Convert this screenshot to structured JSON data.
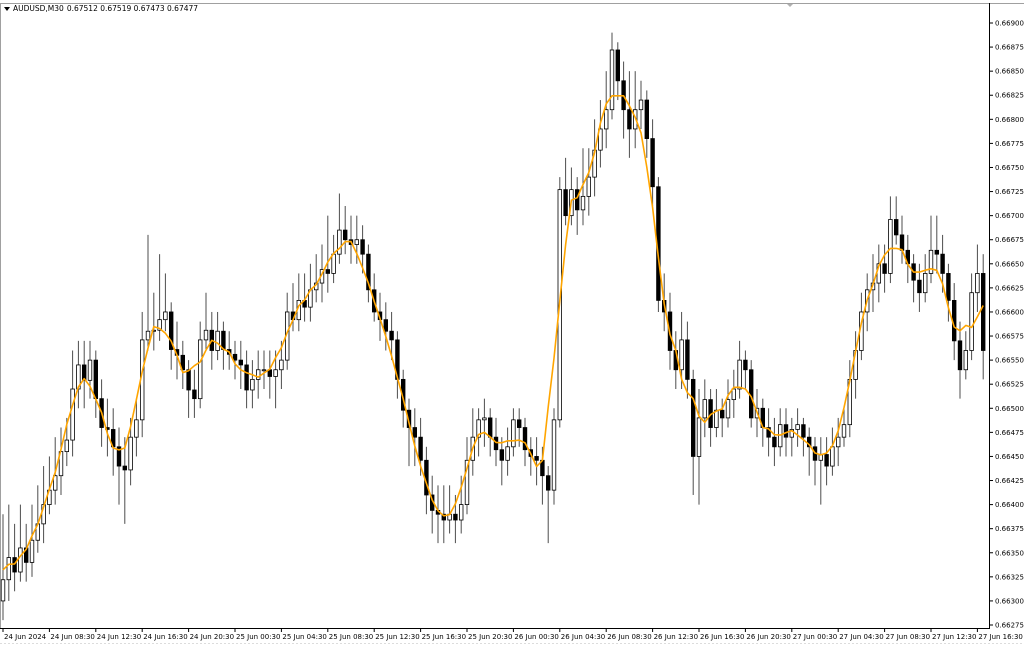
{
  "header": {
    "symbol": "AUDUSD,M30",
    "quote": "0.67512 0.67519 0.67473 0.67477",
    "menu_icon": "triangle-down-icon"
  },
  "colors": {
    "background": "#ffffff",
    "candle": "#000000",
    "wick": "#4d4d4d",
    "indicator": "#ffa500",
    "axis": "#000000"
  },
  "chart_data": {
    "type": "candlestick",
    "title": "AUDUSD,M30",
    "timeframe": "M30",
    "grid": false,
    "ylim": [
      0.66275,
      0.669
    ],
    "y_ticks": [
      "0.66900",
      "0.66875",
      "0.66850",
      "0.66825",
      "0.66800",
      "0.66775",
      "0.66750",
      "0.66725",
      "0.66700",
      "0.66675",
      "0.66650",
      "0.66625",
      "0.66600",
      "0.66575",
      "0.66550",
      "0.66525",
      "0.66500",
      "0.66475",
      "0.66450",
      "0.66425",
      "0.66400",
      "0.66375",
      "0.66350",
      "0.66325",
      "0.66300",
      "0.66275"
    ],
    "x_ticks": [
      "24 Jun 2024",
      "24 Jun 08:30",
      "24 Jun 12:30",
      "24 Jun 16:30",
      "24 Jun 20:30",
      "25 Jun 00:30",
      "25 Jun 04:30",
      "25 Jun 08:30",
      "25 Jun 12:30",
      "25 Jun 16:30",
      "25 Jun 20:30",
      "26 Jun 00:30",
      "26 Jun 04:30",
      "26 Jun 08:30",
      "26 Jun 12:30",
      "26 Jun 16:30",
      "26 Jun 20:30",
      "27 Jun 00:30",
      "27 Jun 04:30",
      "27 Jun 08:30",
      "27 Jun 12:30",
      "27 Jun 16:30"
    ],
    "indicator": {
      "type": "moving-average",
      "color": "#ffa500"
    },
    "ohlc": [
      [
        0.663,
        0.6639,
        0.6628,
        0.66322
      ],
      [
        0.66322,
        0.664,
        0.663,
        0.66345
      ],
      [
        0.66345,
        0.6638,
        0.6631,
        0.6633
      ],
      [
        0.6633,
        0.664,
        0.6632,
        0.66355
      ],
      [
        0.66355,
        0.6638,
        0.6632,
        0.6634
      ],
      [
        0.6634,
        0.664,
        0.66325,
        0.66363
      ],
      [
        0.66363,
        0.6642,
        0.6635,
        0.6638
      ],
      [
        0.6638,
        0.6644,
        0.6636,
        0.664
      ],
      [
        0.664,
        0.6645,
        0.6639,
        0.66415
      ],
      [
        0.66415,
        0.6647,
        0.664,
        0.6643
      ],
      [
        0.6643,
        0.6648,
        0.6641,
        0.66455
      ],
      [
        0.66455,
        0.6649,
        0.6644,
        0.66467
      ],
      [
        0.66467,
        0.6656,
        0.6645,
        0.6652
      ],
      [
        0.6652,
        0.6657,
        0.665,
        0.66545
      ],
      [
        0.66545,
        0.6657,
        0.665,
        0.66529
      ],
      [
        0.66529,
        0.6657,
        0.6651,
        0.6655
      ],
      [
        0.6655,
        0.6656,
        0.6649,
        0.6651
      ],
      [
        0.6651,
        0.6653,
        0.6646,
        0.6648
      ],
      [
        0.6648,
        0.6651,
        0.6645,
        0.66478
      ],
      [
        0.66478,
        0.665,
        0.6643,
        0.6646
      ],
      [
        0.6646,
        0.6648,
        0.664,
        0.6644
      ],
      [
        0.6644,
        0.6647,
        0.6638,
        0.66436
      ],
      [
        0.66436,
        0.6649,
        0.6642,
        0.6647
      ],
      [
        0.6647,
        0.6651,
        0.6645,
        0.66488
      ],
      [
        0.66488,
        0.666,
        0.6647,
        0.66571
      ],
      [
        0.66571,
        0.6668,
        0.6656,
        0.6658
      ],
      [
        0.6658,
        0.6662,
        0.6656,
        0.66581
      ],
      [
        0.66581,
        0.6666,
        0.6657,
        0.66592
      ],
      [
        0.66592,
        0.6664,
        0.6658,
        0.666
      ],
      [
        0.666,
        0.6661,
        0.6654,
        0.66561
      ],
      [
        0.66561,
        0.6659,
        0.6653,
        0.66555
      ],
      [
        0.66555,
        0.6657,
        0.6652,
        0.6654
      ],
      [
        0.6654,
        0.6655,
        0.6649,
        0.66519
      ],
      [
        0.66519,
        0.6654,
        0.6649,
        0.6651
      ],
      [
        0.6651,
        0.6659,
        0.665,
        0.66571
      ],
      [
        0.66571,
        0.6662,
        0.6656,
        0.66581
      ],
      [
        0.66581,
        0.666,
        0.6654,
        0.6656
      ],
      [
        0.6656,
        0.666,
        0.6655,
        0.6658
      ],
      [
        0.6658,
        0.6659,
        0.6654,
        0.66561
      ],
      [
        0.66561,
        0.6658,
        0.6654,
        0.66556
      ],
      [
        0.66556,
        0.6657,
        0.6653,
        0.6655
      ],
      [
        0.6655,
        0.6657,
        0.6652,
        0.66545
      ],
      [
        0.66545,
        0.6656,
        0.665,
        0.66519
      ],
      [
        0.66519,
        0.6655,
        0.665,
        0.6653
      ],
      [
        0.6653,
        0.6656,
        0.6651,
        0.6654
      ],
      [
        0.6654,
        0.6656,
        0.6652,
        0.6654
      ],
      [
        0.6654,
        0.6656,
        0.6651,
        0.66533
      ],
      [
        0.66533,
        0.6656,
        0.665,
        0.6654
      ],
      [
        0.6654,
        0.6657,
        0.6652,
        0.6655
      ],
      [
        0.6655,
        0.6662,
        0.6654,
        0.666
      ],
      [
        0.666,
        0.6663,
        0.6658,
        0.66592
      ],
      [
        0.66592,
        0.6664,
        0.6658,
        0.66612
      ],
      [
        0.66612,
        0.6664,
        0.6659,
        0.66605
      ],
      [
        0.66605,
        0.6665,
        0.6659,
        0.66623
      ],
      [
        0.66623,
        0.6666,
        0.6661,
        0.6663
      ],
      [
        0.6663,
        0.6667,
        0.6661,
        0.66644
      ],
      [
        0.66644,
        0.667,
        0.6662,
        0.6664
      ],
      [
        0.6664,
        0.6668,
        0.6663,
        0.6666
      ],
      [
        0.6666,
        0.66723,
        0.6665,
        0.66685
      ],
      [
        0.66685,
        0.6671,
        0.6666,
        0.66675
      ],
      [
        0.66675,
        0.667,
        0.6665,
        0.6667
      ],
      [
        0.6667,
        0.667,
        0.6665,
        0.66675
      ],
      [
        0.66675,
        0.6669,
        0.6664,
        0.6666
      ],
      [
        0.6666,
        0.6667,
        0.6661,
        0.66623
      ],
      [
        0.66623,
        0.6664,
        0.6659,
        0.666
      ],
      [
        0.666,
        0.6662,
        0.6657,
        0.66592
      ],
      [
        0.66592,
        0.6661,
        0.6656,
        0.6658
      ],
      [
        0.6658,
        0.666,
        0.6655,
        0.66571
      ],
      [
        0.66571,
        0.6658,
        0.6651,
        0.6653
      ],
      [
        0.6653,
        0.6654,
        0.6648,
        0.66498
      ],
      [
        0.66498,
        0.6651,
        0.6644,
        0.6648
      ],
      [
        0.6648,
        0.665,
        0.6644,
        0.6647
      ],
      [
        0.6647,
        0.6649,
        0.6643,
        0.66446
      ],
      [
        0.66446,
        0.6646,
        0.6639,
        0.6641
      ],
      [
        0.6641,
        0.6643,
        0.6637,
        0.66394
      ],
      [
        0.66394,
        0.6642,
        0.6636,
        0.6639
      ],
      [
        0.6639,
        0.6642,
        0.6636,
        0.66384
      ],
      [
        0.66384,
        0.6642,
        0.6637,
        0.6639
      ],
      [
        0.6639,
        0.6641,
        0.6636,
        0.66384
      ],
      [
        0.66384,
        0.6643,
        0.6637,
        0.664
      ],
      [
        0.664,
        0.6647,
        0.6639,
        0.66446
      ],
      [
        0.66446,
        0.665,
        0.6643,
        0.6647
      ],
      [
        0.6647,
        0.665,
        0.6645,
        0.66488
      ],
      [
        0.66488,
        0.6651,
        0.6646,
        0.6649
      ],
      [
        0.6649,
        0.665,
        0.6645,
        0.6647
      ],
      [
        0.6647,
        0.6649,
        0.6644,
        0.66457
      ],
      [
        0.66457,
        0.6647,
        0.6642,
        0.66446
      ],
      [
        0.66446,
        0.6648,
        0.6643,
        0.6646
      ],
      [
        0.6646,
        0.665,
        0.6645,
        0.66488
      ],
      [
        0.66488,
        0.665,
        0.6646,
        0.6648
      ],
      [
        0.6648,
        0.6649,
        0.6644,
        0.66457
      ],
      [
        0.66457,
        0.6647,
        0.6643,
        0.6645
      ],
      [
        0.6645,
        0.6647,
        0.6642,
        0.66446
      ],
      [
        0.66446,
        0.6646,
        0.664,
        0.6643
      ],
      [
        0.6643,
        0.6644,
        0.6636,
        0.66415
      ],
      [
        0.66415,
        0.665,
        0.664,
        0.66488
      ],
      [
        0.66488,
        0.6674,
        0.6648,
        0.66727
      ],
      [
        0.66727,
        0.6676,
        0.6669,
        0.667
      ],
      [
        0.667,
        0.6675,
        0.6669,
        0.66727
      ],
      [
        0.66727,
        0.6674,
        0.6668,
        0.66706
      ],
      [
        0.66706,
        0.6677,
        0.6669,
        0.6672
      ],
      [
        0.6672,
        0.6677,
        0.667,
        0.6674
      ],
      [
        0.6674,
        0.668,
        0.6672,
        0.66768
      ],
      [
        0.66768,
        0.6682,
        0.6675,
        0.6679
      ],
      [
        0.6679,
        0.6685,
        0.6677,
        0.6681
      ],
      [
        0.6681,
        0.6689,
        0.668,
        0.66872
      ],
      [
        0.66872,
        0.6688,
        0.6682,
        0.6684
      ],
      [
        0.6684,
        0.6686,
        0.6678,
        0.6681
      ],
      [
        0.6681,
        0.6685,
        0.6676,
        0.6679
      ],
      [
        0.6679,
        0.6685,
        0.6677,
        0.6681
      ],
      [
        0.6681,
        0.6684,
        0.6679,
        0.6682
      ],
      [
        0.6682,
        0.6683,
        0.6676,
        0.6678
      ],
      [
        0.6678,
        0.668,
        0.6671,
        0.6673
      ],
      [
        0.6673,
        0.6674,
        0.666,
        0.66612
      ],
      [
        0.66612,
        0.6664,
        0.6658,
        0.666
      ],
      [
        0.666,
        0.6662,
        0.6654,
        0.6656
      ],
      [
        0.6656,
        0.6658,
        0.6652,
        0.6654
      ],
      [
        0.6654,
        0.666,
        0.6652,
        0.66571
      ],
      [
        0.66571,
        0.6659,
        0.6651,
        0.6653
      ],
      [
        0.6653,
        0.6654,
        0.6641,
        0.6645
      ],
      [
        0.6645,
        0.6652,
        0.664,
        0.6649
      ],
      [
        0.6649,
        0.6653,
        0.6647,
        0.66509
      ],
      [
        0.66509,
        0.6652,
        0.6646,
        0.6648
      ],
      [
        0.6648,
        0.6652,
        0.6647,
        0.66498
      ],
      [
        0.66498,
        0.6651,
        0.6647,
        0.6649
      ],
      [
        0.6649,
        0.6653,
        0.6648,
        0.66509
      ],
      [
        0.66509,
        0.6654,
        0.6649,
        0.6652
      ],
      [
        0.6652,
        0.6657,
        0.6651,
        0.6655
      ],
      [
        0.6655,
        0.6656,
        0.6652,
        0.6654
      ],
      [
        0.6654,
        0.6655,
        0.6648,
        0.6649
      ],
      [
        0.6649,
        0.6652,
        0.6647,
        0.665
      ],
      [
        0.665,
        0.6651,
        0.6646,
        0.6648
      ],
      [
        0.6648,
        0.665,
        0.6645,
        0.6647
      ],
      [
        0.6647,
        0.6649,
        0.6644,
        0.6646
      ],
      [
        0.6646,
        0.665,
        0.6645,
        0.66483
      ],
      [
        0.66483,
        0.665,
        0.6645,
        0.6647
      ],
      [
        0.6647,
        0.6649,
        0.6645,
        0.66478
      ],
      [
        0.66478,
        0.665,
        0.6646,
        0.66483
      ],
      [
        0.66483,
        0.6649,
        0.6645,
        0.6647
      ],
      [
        0.6647,
        0.6648,
        0.6643,
        0.6646
      ],
      [
        0.6646,
        0.6647,
        0.6642,
        0.66446
      ],
      [
        0.66446,
        0.6647,
        0.664,
        0.66452
      ],
      [
        0.66452,
        0.6647,
        0.6642,
        0.6644
      ],
      [
        0.6644,
        0.6648,
        0.6643,
        0.6646
      ],
      [
        0.6646,
        0.6649,
        0.6644,
        0.6647
      ],
      [
        0.6647,
        0.665,
        0.6646,
        0.66483
      ],
      [
        0.66483,
        0.6655,
        0.6647,
        0.6653
      ],
      [
        0.6653,
        0.6658,
        0.6651,
        0.6656
      ],
      [
        0.6656,
        0.6662,
        0.6655,
        0.666
      ],
      [
        0.666,
        0.6664,
        0.6658,
        0.66623
      ],
      [
        0.66623,
        0.6666,
        0.666,
        0.6663
      ],
      [
        0.6663,
        0.6667,
        0.6661,
        0.6665
      ],
      [
        0.6665,
        0.6667,
        0.6662,
        0.6664
      ],
      [
        0.6664,
        0.6672,
        0.6663,
        0.66696
      ],
      [
        0.66696,
        0.6672,
        0.6667,
        0.6668
      ],
      [
        0.6668,
        0.667,
        0.6665,
        0.66664
      ],
      [
        0.66664,
        0.6668,
        0.6663,
        0.6665
      ],
      [
        0.6665,
        0.6666,
        0.6661,
        0.66633
      ],
      [
        0.66633,
        0.6665,
        0.666,
        0.6662
      ],
      [
        0.6662,
        0.6666,
        0.6661,
        0.6664
      ],
      [
        0.6664,
        0.667,
        0.6663,
        0.66664
      ],
      [
        0.66664,
        0.667,
        0.6664,
        0.6666
      ],
      [
        0.6666,
        0.6668,
        0.6662,
        0.6664
      ],
      [
        0.6664,
        0.6665,
        0.6659,
        0.66612
      ],
      [
        0.66612,
        0.6663,
        0.6655,
        0.6657
      ],
      [
        0.6657,
        0.6659,
        0.6651,
        0.6654
      ],
      [
        0.6654,
        0.6658,
        0.6653,
        0.6656
      ],
      [
        0.6656,
        0.6664,
        0.6655,
        0.6662
      ],
      [
        0.6662,
        0.6667,
        0.666,
        0.6664
      ],
      [
        0.6664,
        0.6666,
        0.6653,
        0.6656
      ]
    ]
  }
}
